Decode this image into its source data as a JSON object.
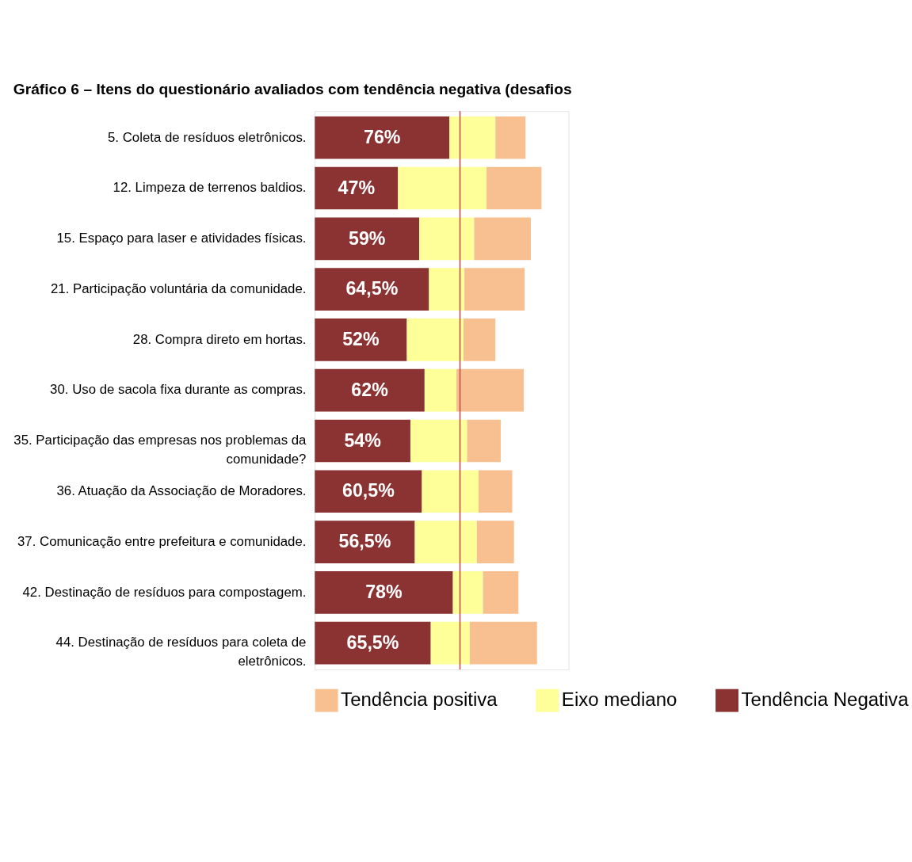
{
  "chart_data": {
    "type": "bar",
    "orientation": "horizontal",
    "stacked": true,
    "title": "Gráfico 6 – Itens do questionário avaliados com tendência negativa (desafios",
    "categories": [
      "5. Coleta de resíduos eletrônicos.",
      "12. Limpeza de terrenos baldios.",
      "15. Espaço para laser e atividades físicas.",
      "21. Participação voluntária da comunidade.",
      "28. Compra direto em hortas.",
      "30. Uso de sacola fixa durante as compras.",
      "35. Participação das empresas nos problemas da comunidade?",
      "36. Atuação da Associação de Moradores.",
      "37. Comunicação entre prefeitura e comunidade.",
      "42. Destinação de resíduos para compostagem.",
      "44. Destinação de resíduos para coleta de eletrônicos."
    ],
    "series": [
      {
        "name": "Tendência Negativa",
        "color": "#8b3232",
        "values": [
          76,
          47,
          59,
          64.5,
          52,
          62,
          54,
          60.5,
          56.5,
          78,
          65.5
        ],
        "value_labels": [
          "76%",
          "47%",
          "59%",
          "64,5%",
          "52%",
          "62%",
          "54%",
          "60,5%",
          "56,5%",
          "78%",
          "65,5%"
        ]
      },
      {
        "name": "Eixo mediano",
        "color": "#ffff99",
        "values": [
          26,
          50,
          31,
          20,
          32,
          18,
          32,
          32,
          35,
          17,
          22
        ]
      },
      {
        "name": "Tendência positiva",
        "color": "#f8c090",
        "values": [
          17,
          31,
          32,
          34,
          18,
          38,
          19,
          19,
          21,
          20,
          38
        ]
      }
    ],
    "ref_lines": [
      {
        "axis": "x",
        "value": 82,
        "color": "#c0504d"
      }
    ],
    "legend": "bottom"
  }
}
